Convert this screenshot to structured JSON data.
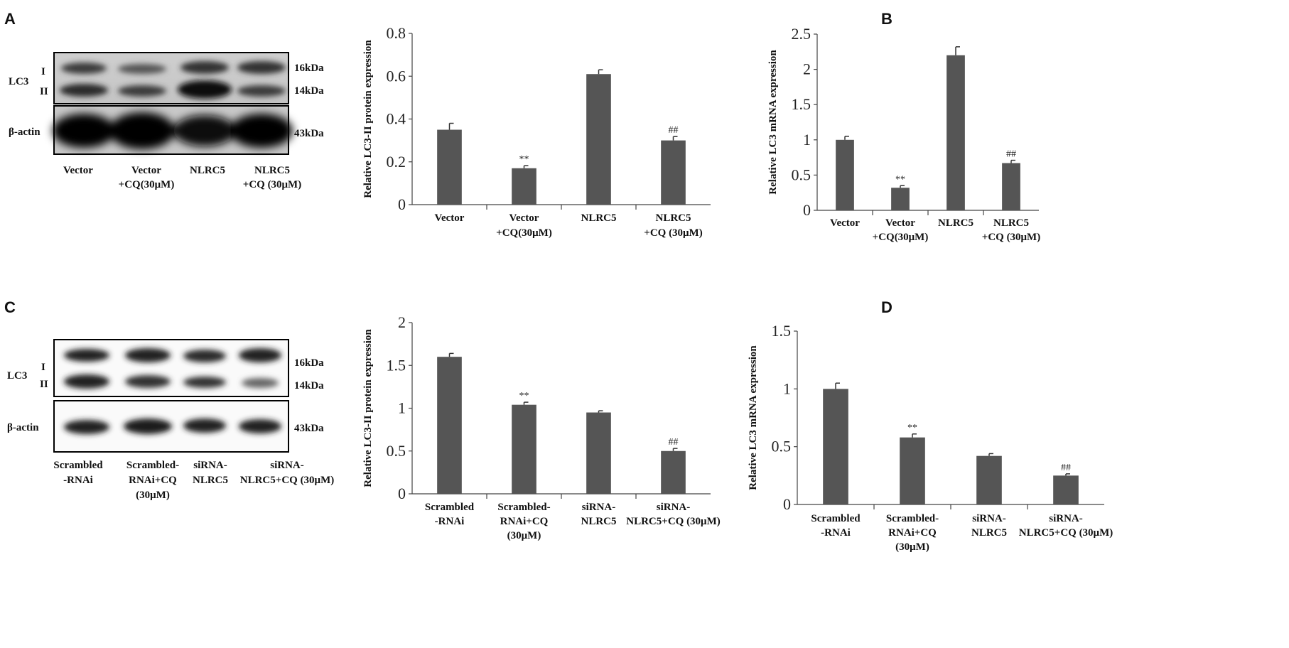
{
  "panels": {
    "A": {
      "letter": "A",
      "blot": {
        "protein_label": "LC3",
        "band_labels": [
          "I",
          "II"
        ],
        "loading_label": "β-actin",
        "kda_labels": [
          "16kDa",
          "14kDa",
          "43kDa"
        ],
        "lanes": [
          [
            "Vector"
          ],
          [
            "Vector",
            "+CQ(30μM)"
          ],
          [
            "NLRC5"
          ],
          [
            "NLRC5",
            "+CQ (30μM)"
          ]
        ]
      }
    },
    "B": {
      "letter": "B"
    },
    "C": {
      "letter": "C",
      "blot": {
        "protein_label": "LC3",
        "band_labels": [
          "I",
          "II"
        ],
        "loading_label": "β-actin",
        "kda_labels": [
          "16kDa",
          "14kDa",
          "43kDa"
        ],
        "lanes": [
          [
            "Scrambled",
            "-RNAi"
          ],
          [
            "Scrambled-",
            "RNAi+CQ",
            "(30μM)"
          ],
          [
            "siRNA-",
            "NLRC5"
          ],
          [
            "siRNA-",
            "NLRC5+CQ (30μM)"
          ]
        ]
      }
    },
    "D": {
      "letter": "D"
    }
  },
  "colors": {
    "bar": "#555555",
    "axis": "#444444",
    "text": "#111111"
  },
  "chart_data": [
    {
      "id": "A-bar",
      "type": "bar",
      "ylabel": "Relative  LC3-II protein expression",
      "ylim": [
        0,
        0.8
      ],
      "yticks": [
        "0",
        "0.2",
        "0.4",
        "0.6",
        "0.8"
      ],
      "categories": [
        [
          "Vector"
        ],
        [
          "Vector",
          "+CQ(30μM)"
        ],
        [
          "NLRC5"
        ],
        [
          "NLRC5",
          "+CQ (30μM)"
        ]
      ],
      "values": [
        0.35,
        0.17,
        0.61,
        0.3
      ],
      "errors": [
        0.03,
        0.012,
        0.02,
        0.018
      ],
      "annotations": [
        "",
        "**",
        "",
        "##"
      ]
    },
    {
      "id": "B-bar",
      "type": "bar",
      "ylabel": "Relative  LC3 mRNA expression",
      "ylim": [
        0,
        2.5
      ],
      "yticks": [
        "0",
        "0.5",
        "1",
        "1.5",
        "2",
        "2.5"
      ],
      "categories": [
        [
          "Vector"
        ],
        [
          "Vector",
          "+CQ(30μM)"
        ],
        [
          "NLRC5"
        ],
        [
          "NLRC5",
          "+CQ (30μM)"
        ]
      ],
      "values": [
        1.0,
        0.32,
        2.2,
        0.67
      ],
      "errors": [
        0.05,
        0.03,
        0.12,
        0.04
      ],
      "annotations": [
        "",
        "**",
        "",
        "##"
      ]
    },
    {
      "id": "C-bar",
      "type": "bar",
      "ylabel": "Relative  LC3-II protein expression",
      "ylim": [
        0,
        2
      ],
      "yticks": [
        "0",
        "0.5",
        "1",
        "1.5",
        "2"
      ],
      "categories": [
        [
          "Scrambled",
          "-RNAi"
        ],
        [
          "Scrambled-",
          "RNAi+CQ",
          "(30μM)"
        ],
        [
          "siRNA-",
          "NLRC5"
        ],
        [
          "siRNA-",
          "NLRC5+CQ (30μM)"
        ]
      ],
      "values": [
        1.6,
        1.04,
        0.95,
        0.5
      ],
      "errors": [
        0.04,
        0.03,
        0.02,
        0.03
      ],
      "annotations": [
        "",
        "**",
        "",
        "##"
      ]
    },
    {
      "id": "D-bar",
      "type": "bar",
      "ylabel": "Relative  LC3 mRNA expression",
      "ylim": [
        0,
        1.5
      ],
      "yticks": [
        "0",
        "0.5",
        "1",
        "1.5"
      ],
      "categories": [
        [
          "Scrambled",
          "-RNAi"
        ],
        [
          "Scrambled-",
          "RNAi+CQ",
          "(30μM)"
        ],
        [
          "siRNA-",
          "NLRC5"
        ],
        [
          "siRNA-",
          "NLRC5+CQ (30μM)"
        ]
      ],
      "values": [
        1.0,
        0.58,
        0.42,
        0.25
      ],
      "errors": [
        0.05,
        0.03,
        0.02,
        0.015
      ],
      "annotations": [
        "",
        "**",
        "",
        "##"
      ]
    }
  ]
}
